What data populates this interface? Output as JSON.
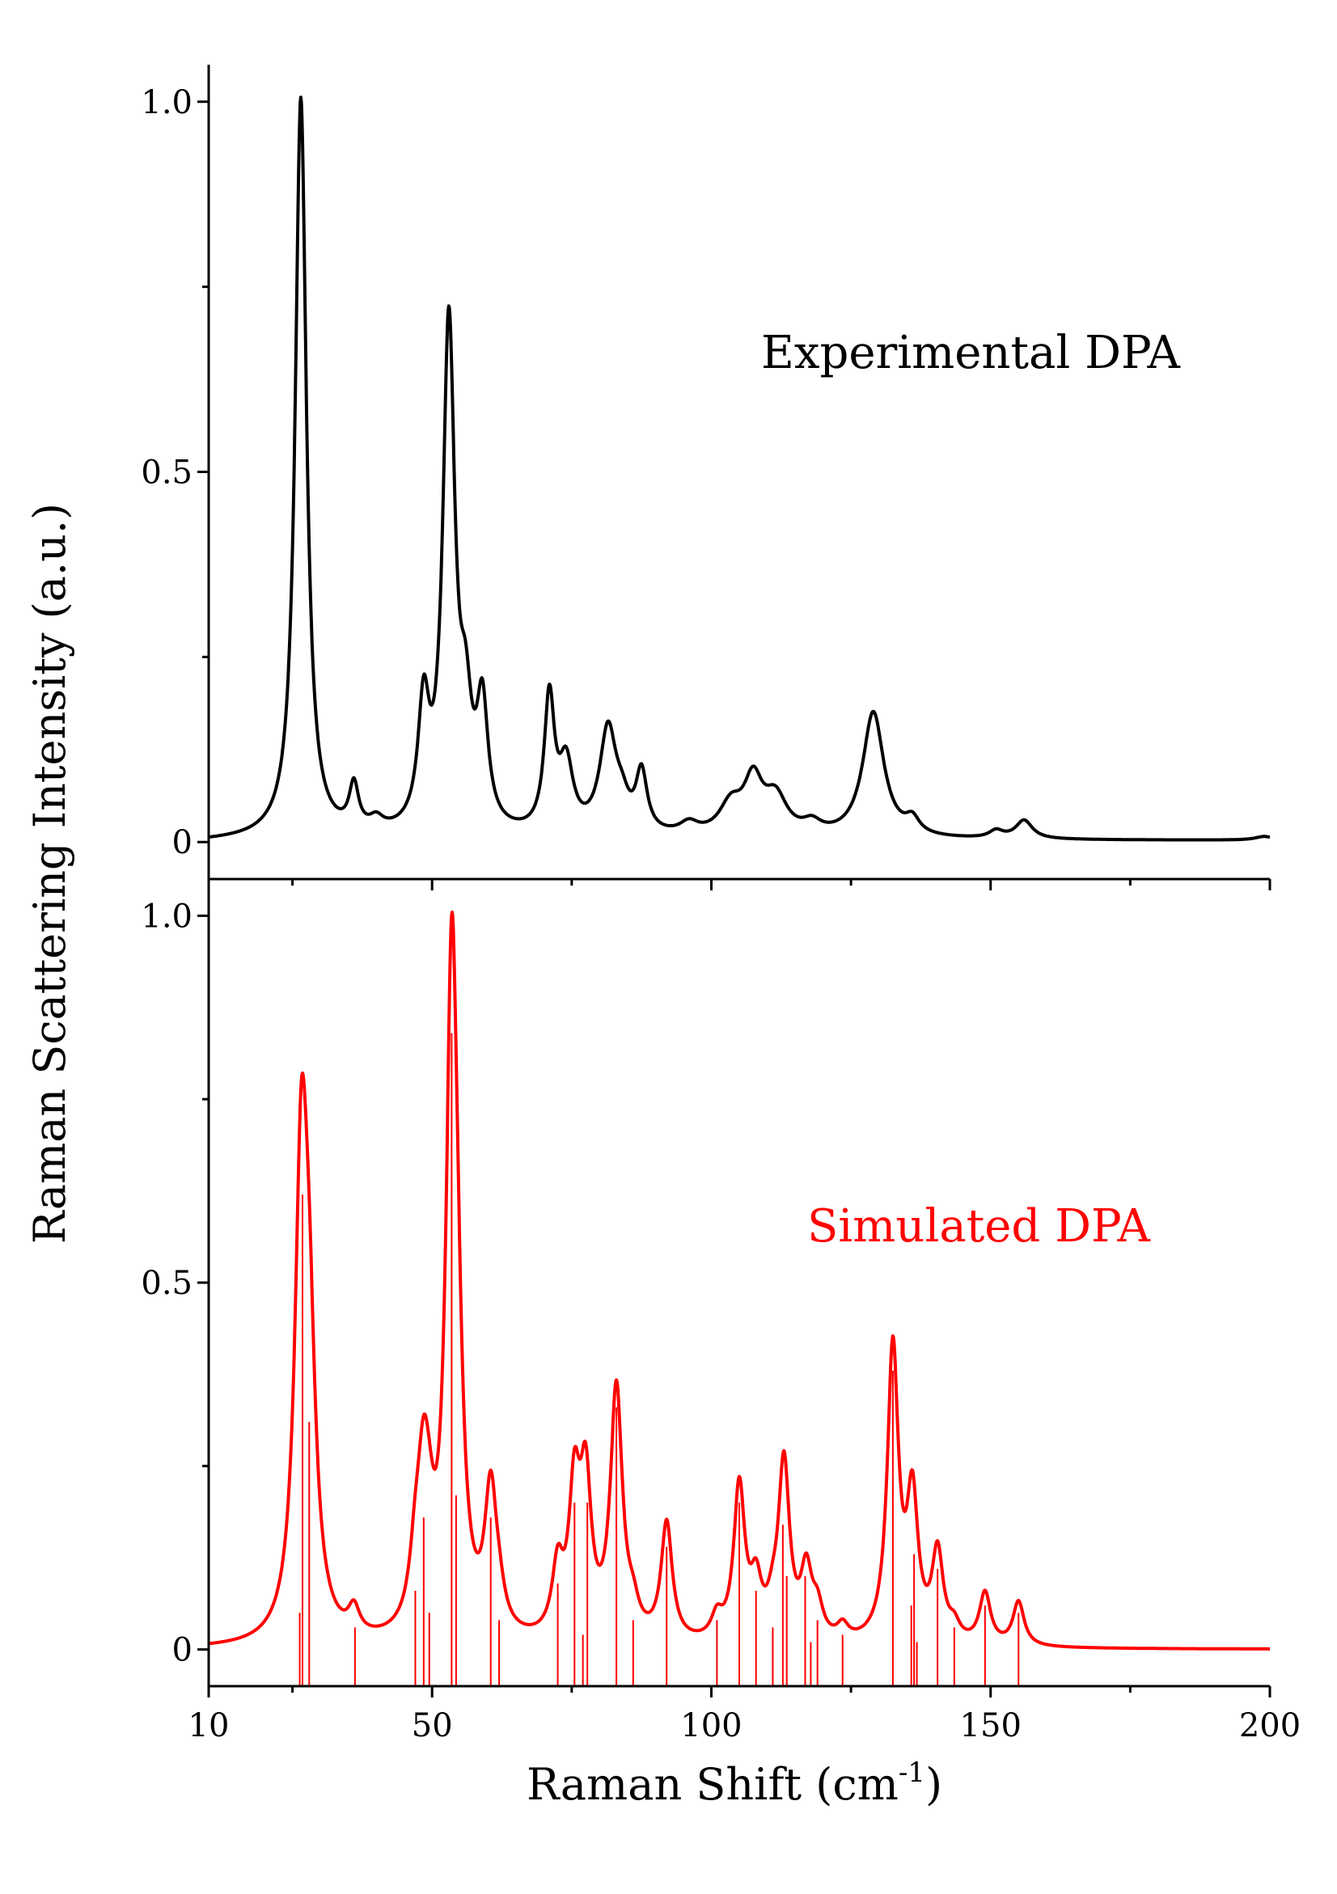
{
  "chart_data": [
    {
      "type": "line",
      "panel": "top",
      "title": "",
      "annotation": "Experimental DPA",
      "color": "#000000",
      "ylabel": "Raman Scattering Intensity (a.u.)",
      "xlim": [
        10,
        200
      ],
      "ylim": [
        -0.05,
        1.05
      ],
      "yticks": [
        0,
        0.5,
        1.0
      ],
      "ytick_labels": [
        "0",
        "0.5",
        "1.0"
      ],
      "baseline_slope": [
        0.002,
        0.0
      ],
      "peaks": [
        {
          "x": 26.5,
          "h": 1.0,
          "w": 1.2
        },
        {
          "x": 36.0,
          "h": 0.06,
          "w": 1.0
        },
        {
          "x": 40.0,
          "h": 0.015,
          "w": 1.5
        },
        {
          "x": 48.5,
          "h": 0.16,
          "w": 1.2
        },
        {
          "x": 53.0,
          "h": 0.68,
          "w": 1.3
        },
        {
          "x": 56.0,
          "h": 0.13,
          "w": 1.3
        },
        {
          "x": 59.0,
          "h": 0.16,
          "w": 1.2
        },
        {
          "x": 71.0,
          "h": 0.18,
          "w": 1.1
        },
        {
          "x": 74.0,
          "h": 0.09,
          "w": 1.5
        },
        {
          "x": 81.5,
          "h": 0.14,
          "w": 1.8
        },
        {
          "x": 84.0,
          "h": 0.03,
          "w": 1.5
        },
        {
          "x": 87.5,
          "h": 0.08,
          "w": 1.2
        },
        {
          "x": 96.0,
          "h": 0.015,
          "w": 2.0
        },
        {
          "x": 103.5,
          "h": 0.04,
          "w": 2.5
        },
        {
          "x": 107.5,
          "h": 0.07,
          "w": 2.0
        },
        {
          "x": 111.5,
          "h": 0.05,
          "w": 2.5
        },
        {
          "x": 118.0,
          "h": 0.015,
          "w": 2.0
        },
        {
          "x": 129.0,
          "h": 0.17,
          "w": 2.3
        },
        {
          "x": 136.0,
          "h": 0.02,
          "w": 1.5
        },
        {
          "x": 151.0,
          "h": 0.01,
          "w": 1.5
        },
        {
          "x": 156.0,
          "h": 0.025,
          "w": 1.8
        },
        {
          "x": 199.0,
          "h": 0.005,
          "w": 2.0
        }
      ]
    },
    {
      "type": "line",
      "panel": "bottom",
      "title": "",
      "annotation": "Simulated DPA",
      "color": "#ff0000",
      "xlabel": "Raman Shift (cm-1)",
      "xlim": [
        10,
        200
      ],
      "ylim": [
        -0.05,
        1.05
      ],
      "xticks": [
        10,
        50,
        100,
        150,
        200
      ],
      "xtick_labels": [
        "10",
        "50",
        "100",
        "150",
        "200"
      ],
      "yticks": [
        0,
        0.5,
        1.0
      ],
      "ytick_labels": [
        "0",
        "0.5",
        "1.0"
      ],
      "peaks": [
        {
          "x": 26.6,
          "h": 0.62,
          "w": 1.4
        },
        {
          "x": 28.0,
          "h": 0.3,
          "w": 1.4
        },
        {
          "x": 36.0,
          "h": 0.035,
          "w": 1.2
        },
        {
          "x": 47.0,
          "h": 0.07,
          "w": 1.2
        },
        {
          "x": 48.5,
          "h": 0.2,
          "w": 1.4
        },
        {
          "x": 49.5,
          "h": 0.05,
          "w": 1.2
        },
        {
          "x": 53.5,
          "h": 0.85,
          "w": 1.2
        },
        {
          "x": 54.5,
          "h": 0.2,
          "w": 1.2
        },
        {
          "x": 60.5,
          "h": 0.19,
          "w": 1.3
        },
        {
          "x": 62.0,
          "h": 0.03,
          "w": 1.2
        },
        {
          "x": 72.5,
          "h": 0.09,
          "w": 1.2
        },
        {
          "x": 75.5,
          "h": 0.19,
          "w": 1.2
        },
        {
          "x": 77.5,
          "h": 0.2,
          "w": 1.2
        },
        {
          "x": 83.0,
          "h": 0.34,
          "w": 1.3
        },
        {
          "x": 86.0,
          "h": 0.03,
          "w": 1.2
        },
        {
          "x": 92.0,
          "h": 0.16,
          "w": 1.2
        },
        {
          "x": 101.0,
          "h": 0.03,
          "w": 1.2
        },
        {
          "x": 105.0,
          "h": 0.21,
          "w": 1.2
        },
        {
          "x": 108.0,
          "h": 0.07,
          "w": 1.2
        },
        {
          "x": 111.0,
          "h": 0.03,
          "w": 1.2
        },
        {
          "x": 113.0,
          "h": 0.24,
          "w": 1.2
        },
        {
          "x": 117.0,
          "h": 0.09,
          "w": 1.2
        },
        {
          "x": 119.0,
          "h": 0.04,
          "w": 1.2
        },
        {
          "x": 123.5,
          "h": 0.02,
          "w": 1.2
        },
        {
          "x": 132.5,
          "h": 0.4,
          "w": 1.2
        },
        {
          "x": 136.0,
          "h": 0.19,
          "w": 1.2
        },
        {
          "x": 140.5,
          "h": 0.12,
          "w": 1.2
        },
        {
          "x": 143.5,
          "h": 0.02,
          "w": 1.2
        },
        {
          "x": 149.0,
          "h": 0.07,
          "w": 1.2
        },
        {
          "x": 155.0,
          "h": 0.06,
          "w": 1.2
        }
      ],
      "sticks": [
        {
          "x": 26.3,
          "h": 0.05
        },
        {
          "x": 26.8,
          "h": 0.62
        },
        {
          "x": 28.0,
          "h": 0.31
        },
        {
          "x": 36.2,
          "h": 0.03
        },
        {
          "x": 47.0,
          "h": 0.08
        },
        {
          "x": 48.5,
          "h": 0.18
        },
        {
          "x": 49.5,
          "h": 0.05
        },
        {
          "x": 53.5,
          "h": 0.84
        },
        {
          "x": 54.3,
          "h": 0.21
        },
        {
          "x": 60.5,
          "h": 0.18
        },
        {
          "x": 62.0,
          "h": 0.04
        },
        {
          "x": 72.5,
          "h": 0.09
        },
        {
          "x": 75.5,
          "h": 0.2
        },
        {
          "x": 77.0,
          "h": 0.02
        },
        {
          "x": 77.8,
          "h": 0.2
        },
        {
          "x": 83.0,
          "h": 0.33
        },
        {
          "x": 86.0,
          "h": 0.04
        },
        {
          "x": 92.0,
          "h": 0.14
        },
        {
          "x": 101.0,
          "h": 0.04
        },
        {
          "x": 105.0,
          "h": 0.2
        },
        {
          "x": 108.0,
          "h": 0.08
        },
        {
          "x": 111.0,
          "h": 0.03
        },
        {
          "x": 112.8,
          "h": 0.17
        },
        {
          "x": 113.5,
          "h": 0.1
        },
        {
          "x": 116.8,
          "h": 0.1
        },
        {
          "x": 117.8,
          "h": 0.01
        },
        {
          "x": 119.0,
          "h": 0.04
        },
        {
          "x": 123.5,
          "h": 0.02
        },
        {
          "x": 132.5,
          "h": 0.38
        },
        {
          "x": 135.8,
          "h": 0.06
        },
        {
          "x": 136.3,
          "h": 0.13
        },
        {
          "x": 136.8,
          "h": 0.01
        },
        {
          "x": 140.5,
          "h": 0.11
        },
        {
          "x": 143.5,
          "h": 0.03
        },
        {
          "x": 149.0,
          "h": 0.06
        },
        {
          "x": 155.0,
          "h": 0.05
        }
      ]
    }
  ]
}
